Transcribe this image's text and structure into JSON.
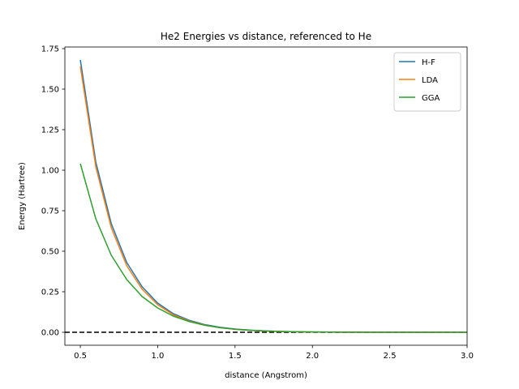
{
  "chart_data": {
    "type": "line",
    "title": "He2 Energies vs distance, referenced to He",
    "xlabel": "distance (Angstrom)",
    "ylabel": "Energy (Hartree)",
    "xlim": [
      0.4,
      3.0
    ],
    "ylim": [
      -0.08,
      1.76
    ],
    "xticks": [
      0.5,
      1.0,
      1.5,
      2.0,
      2.5,
      3.0
    ],
    "xtick_labels": [
      "0.5",
      "1.0",
      "1.5",
      "2.0",
      "2.5",
      "3.0"
    ],
    "yticks": [
      0.0,
      0.25,
      0.5,
      0.75,
      1.0,
      1.25,
      1.5,
      1.75
    ],
    "ytick_labels": [
      "0.00",
      "0.25",
      "0.50",
      "0.75",
      "1.00",
      "1.25",
      "1.50",
      "1.75"
    ],
    "grid": false,
    "legend_position": "top-right",
    "x": [
      0.5,
      0.6,
      0.7,
      0.8,
      0.9,
      1.0,
      1.1,
      1.2,
      1.3,
      1.4,
      1.5,
      1.6,
      1.7,
      1.8,
      1.9,
      2.0,
      2.1,
      2.2,
      2.3,
      2.4,
      2.5,
      2.6,
      2.7,
      2.8,
      2.9,
      3.0
    ],
    "series": [
      {
        "name": "H-F",
        "color": "#1f77b4",
        "values": [
          1.68,
          1.05,
          0.67,
          0.43,
          0.28,
          0.18,
          0.115,
          0.075,
          0.048,
          0.031,
          0.02,
          0.013,
          0.008,
          0.005,
          0.003,
          0.002,
          0.0013,
          0.0008,
          0.0005,
          0.0003,
          0.0002,
          0.0001,
          0.0001,
          0.0,
          0.0,
          0.0
        ]
      },
      {
        "name": "LDA",
        "color": "#ff7f0e",
        "values": [
          1.64,
          1.02,
          0.645,
          0.41,
          0.265,
          0.17,
          0.108,
          0.07,
          0.045,
          0.029,
          0.018,
          0.012,
          0.007,
          0.0045,
          0.003,
          0.0018,
          0.0011,
          0.0007,
          0.0004,
          0.0003,
          0.0002,
          0.0001,
          0.0001,
          0.0,
          0.0,
          0.0
        ]
      },
      {
        "name": "GGA",
        "color": "#2ca02c",
        "values": [
          1.04,
          0.7,
          0.475,
          0.325,
          0.22,
          0.15,
          0.1,
          0.067,
          0.044,
          0.029,
          0.019,
          0.012,
          0.008,
          0.005,
          0.003,
          0.002,
          0.0013,
          0.0008,
          0.0005,
          0.0003,
          0.0002,
          0.0001,
          0.0001,
          0.0,
          0.0,
          0.0
        ]
      }
    ],
    "reference_line": {
      "y": 0.0,
      "style": "dashed",
      "color": "#000000"
    }
  }
}
